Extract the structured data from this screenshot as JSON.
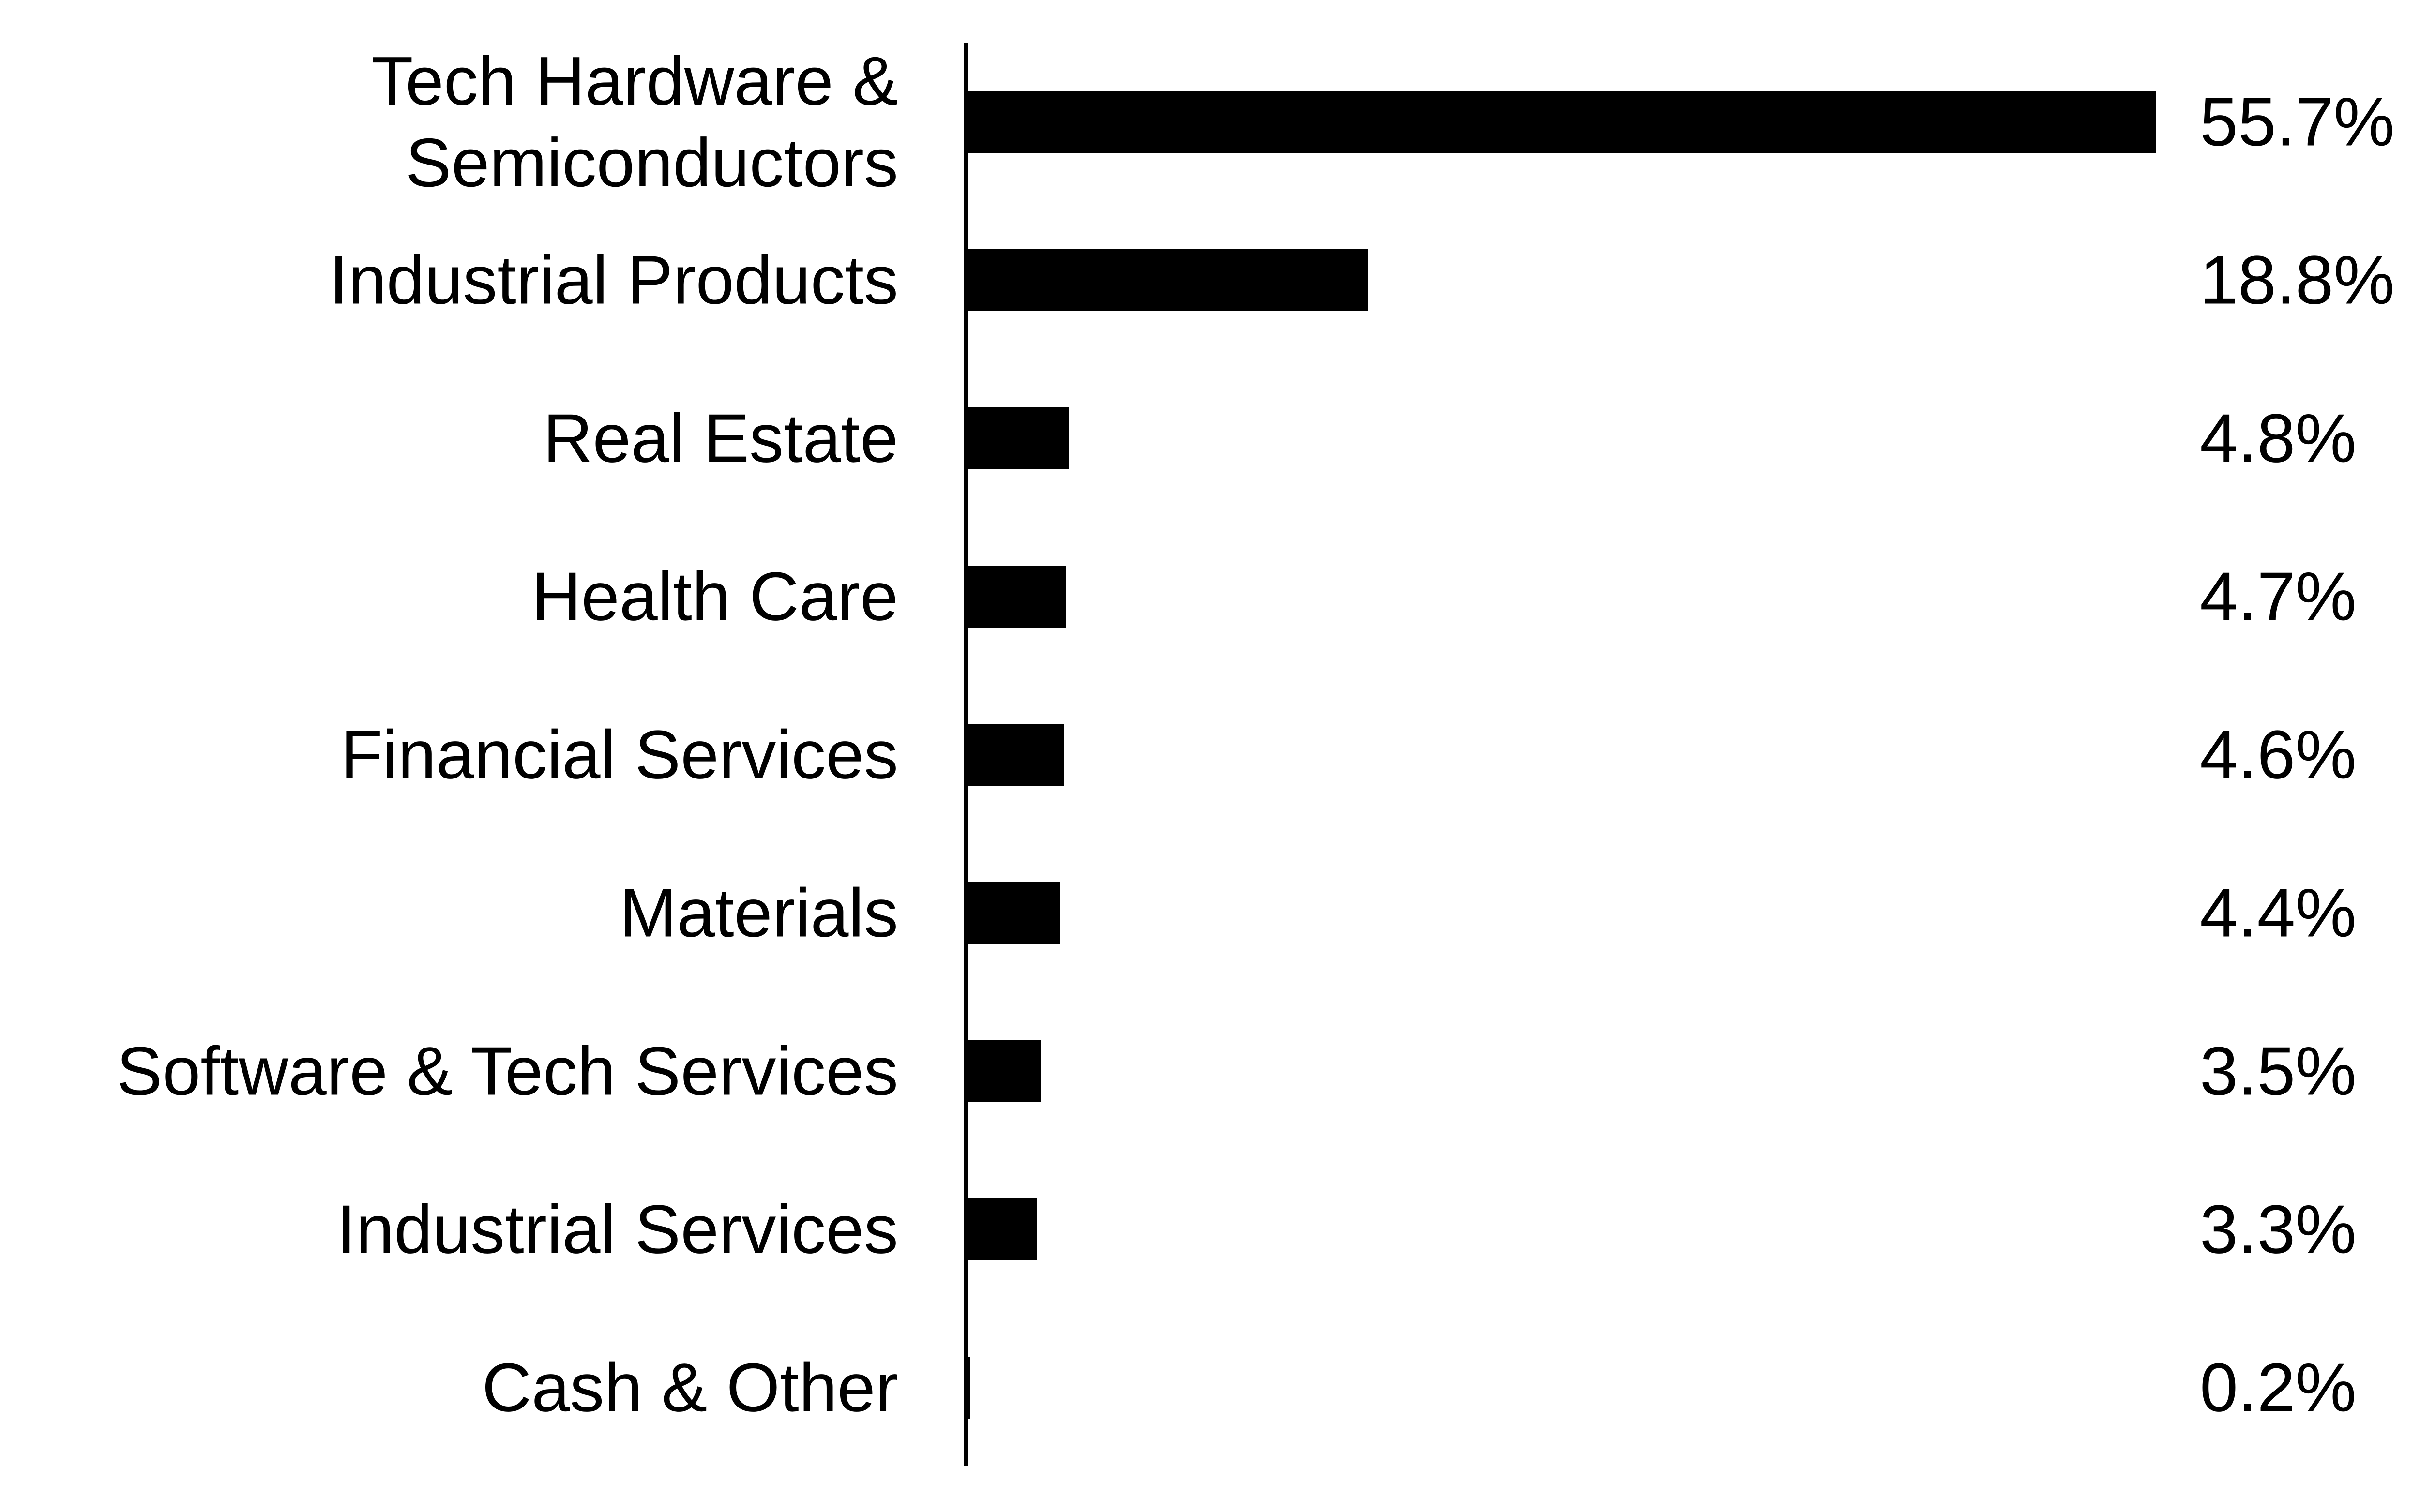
{
  "chart_data": {
    "type": "hbar",
    "categories": [
      "Tech Hardware & Semiconductors",
      "Industrial Products",
      "Real Estate",
      "Health Care",
      "Financial Services",
      "Materials",
      "Software & Tech Services",
      "Industrial Services",
      "Cash & Other"
    ],
    "values": [
      55.7,
      18.8,
      4.8,
      4.7,
      4.6,
      4.4,
      3.5,
      3.3,
      0.2
    ],
    "value_labels": [
      "55.7%",
      "18.8%",
      "4.8%",
      "4.7%",
      "4.6%",
      "4.4%",
      "3.5%",
      "3.3%",
      "0.2%"
    ],
    "color": "#000000"
  }
}
